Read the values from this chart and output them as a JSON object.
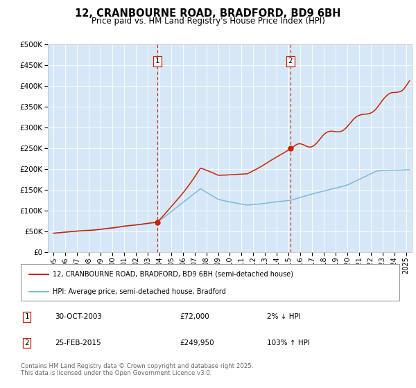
{
  "title": "12, CRANBOURNE ROAD, BRADFORD, BD9 6BH",
  "subtitle": "Price paid vs. HM Land Registry's House Price Index (HPI)",
  "ytick_values": [
    0,
    50000,
    100000,
    150000,
    200000,
    250000,
    300000,
    350000,
    400000,
    450000,
    500000
  ],
  "ylim": [
    0,
    500000
  ],
  "xlim_start": 1994.5,
  "xlim_end": 2025.5,
  "plot_bg_color": "#d6e8f7",
  "hpi_color": "#7db8dc",
  "price_color": "#cc2200",
  "sale1_x": 2003.83,
  "sale1_y": 72000,
  "sale2_x": 2015.15,
  "sale2_y": 249950,
  "vline_color": "#cc2200",
  "legend_line1": "12, CRANBOURNE ROAD, BRADFORD, BD9 6BH (semi-detached house)",
  "legend_line2": "HPI: Average price, semi-detached house, Bradford",
  "footer": "Contains HM Land Registry data © Crown copyright and database right 2025.\nThis data is licensed under the Open Government Licence v3.0.",
  "xticks": [
    1995,
    1996,
    1997,
    1998,
    1999,
    2000,
    2001,
    2002,
    2003,
    2004,
    2005,
    2006,
    2007,
    2008,
    2009,
    2010,
    2011,
    2012,
    2013,
    2014,
    2015,
    2016,
    2017,
    2018,
    2019,
    2020,
    2021,
    2022,
    2023,
    2024,
    2025
  ]
}
